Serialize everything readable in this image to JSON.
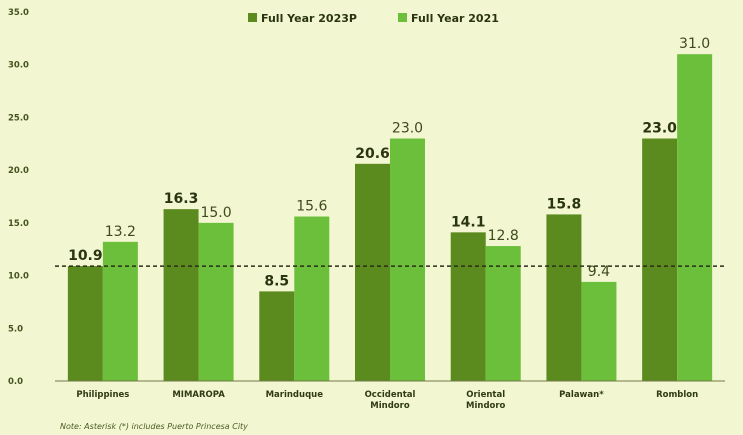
{
  "chart_data": {
    "type": "bar",
    "categories": [
      "Philippines",
      "MIMAROPA",
      "Marinduque",
      "Occidental|Mindoro",
      "Oriental|Mindoro",
      "Palawan*",
      "Romblon"
    ],
    "series": [
      {
        "name": "Full Year 2023P",
        "color": "#5b8a1e",
        "values": [
          10.9,
          16.3,
          8.5,
          20.6,
          14.1,
          15.8,
          23.0
        ]
      },
      {
        "name": "Full Year 2021",
        "color": "#6bbf3a",
        "values": [
          13.2,
          15.0,
          15.6,
          23.0,
          12.8,
          9.4,
          31.0
        ]
      }
    ],
    "yticks": [
      "0.0",
      "5.0",
      "10.0",
      "15.0",
      "20.0",
      "25.0",
      "30.0",
      "35.0"
    ],
    "ylim": [
      0,
      35
    ],
    "reference_line": {
      "value": 10.9,
      "style": "dashed"
    },
    "legend_position": "top-center",
    "note": "Note: Asterisk (*) includes Puerto Princesa City"
  }
}
